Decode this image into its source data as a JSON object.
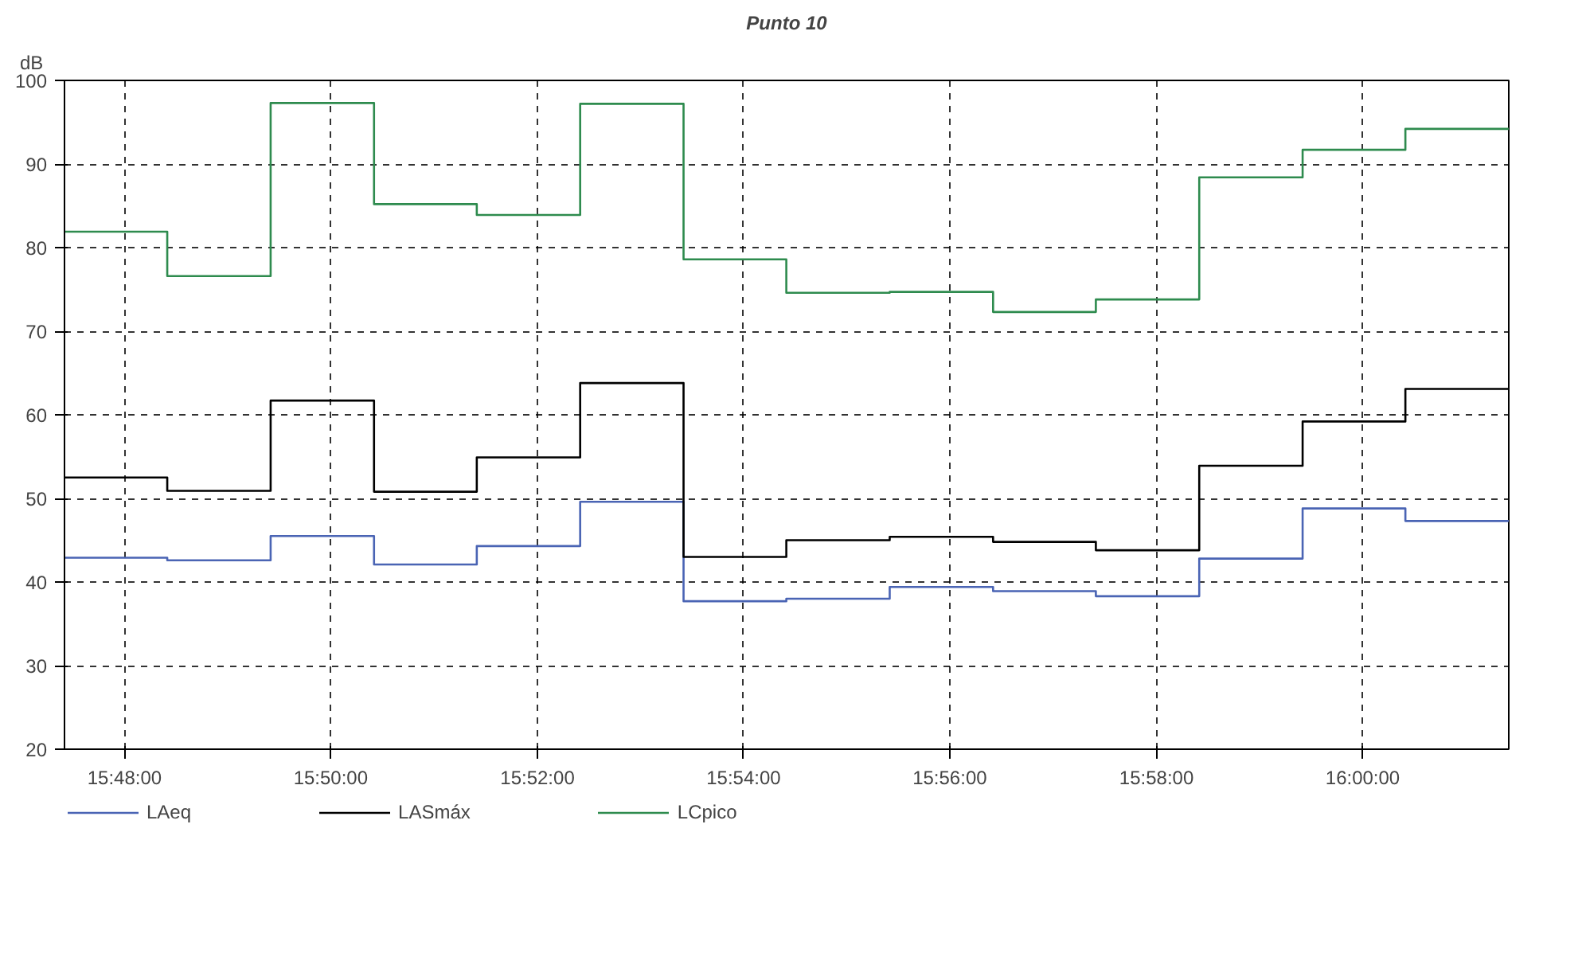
{
  "chart_data": {
    "type": "step",
    "title": "Punto 10",
    "ylabel": "dB",
    "x": [
      15.7903,
      15.8069,
      15.8236,
      15.8403,
      15.8569,
      15.8736,
      15.8903,
      15.9069,
      15.9236,
      15.9403,
      15.9569,
      15.9736,
      15.9903,
      16.0069,
      16.0236
    ],
    "series": [
      {
        "name": "LAeq",
        "color": "#4a64b4",
        "values": [
          42.9,
          42.6,
          45.5,
          42.1,
          44.3,
          49.6,
          37.7,
          38.0,
          39.4,
          38.9,
          38.3,
          42.8,
          48.8,
          47.3,
          47.3
        ]
      },
      {
        "name": "LASmáx",
        "color": "#000000",
        "values": [
          52.5,
          50.9,
          61.7,
          50.8,
          54.9,
          63.8,
          43.0,
          45.0,
          45.4,
          44.8,
          43.8,
          53.9,
          59.2,
          63.1,
          63.1
        ]
      },
      {
        "name": "LCpico",
        "color": "#2e8b4e",
        "values": [
          81.9,
          76.6,
          97.3,
          85.2,
          83.9,
          97.2,
          78.6,
          74.6,
          74.7,
          72.3,
          73.8,
          88.4,
          91.7,
          94.2,
          94.2
        ]
      }
    ],
    "xlim": [
      15.7903,
      16.0236
    ],
    "xticks": [
      {
        "value": 15.8,
        "label": "15:48:00"
      },
      {
        "value": 15.8333,
        "label": "15:50:00"
      },
      {
        "value": 15.8667,
        "label": "15:52:00"
      },
      {
        "value": 15.9,
        "label": "15:54:00"
      },
      {
        "value": 15.9333,
        "label": "15:56:00"
      },
      {
        "value": 15.9667,
        "label": "15:58:00"
      },
      {
        "value": 16.0,
        "label": "16:00:00"
      }
    ],
    "ylim": [
      20,
      100
    ],
    "yticks": [
      20,
      30,
      40,
      50,
      60,
      70,
      80,
      90,
      100
    ],
    "grid": true,
    "legend": "bottom",
    "line_style": "solid",
    "marker": "none"
  }
}
